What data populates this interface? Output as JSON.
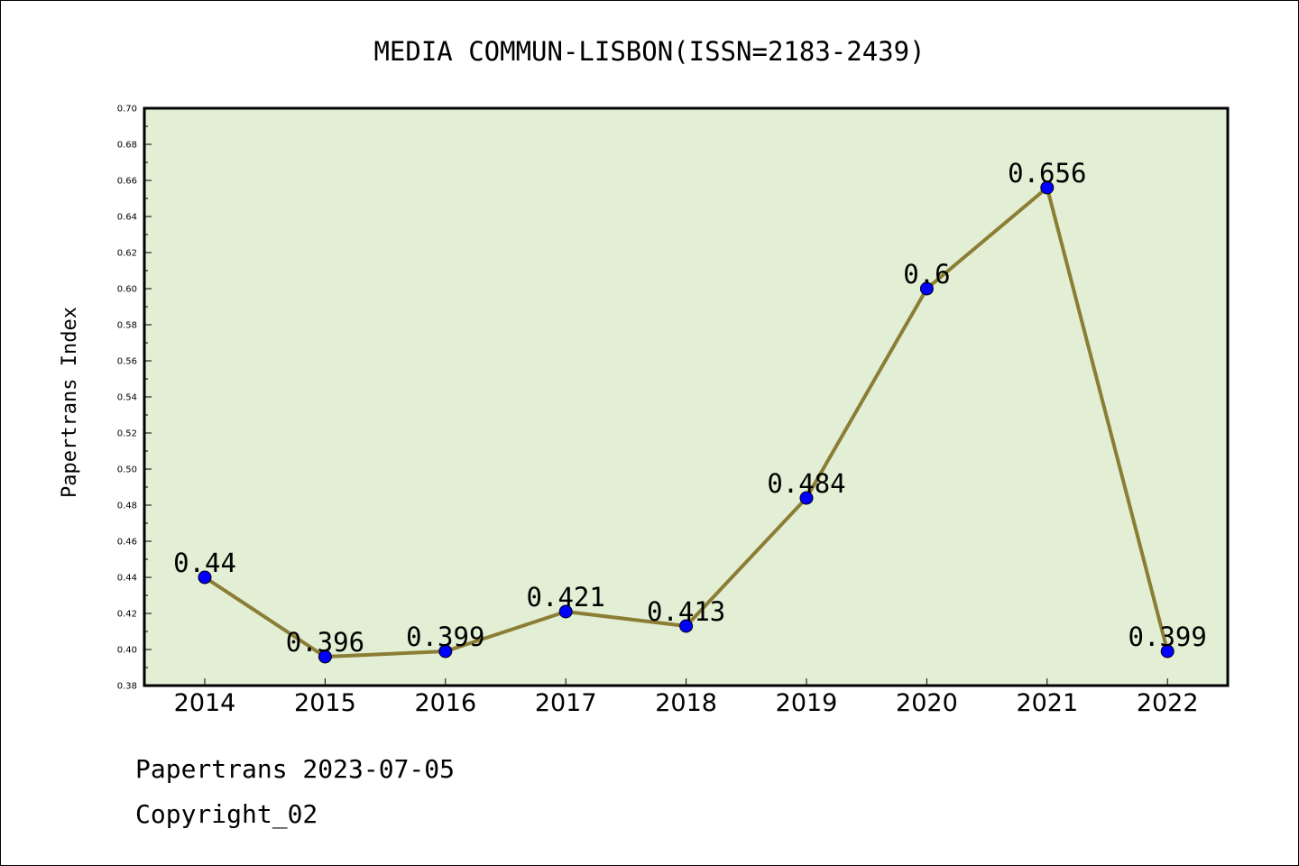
{
  "chart_data": {
    "type": "line",
    "title": "MEDIA COMMUN-LISBON(ISSN=2183-2439)",
    "xlabel": "",
    "ylabel": "Papertrans Index",
    "categories": [
      "2014",
      "2015",
      "2016",
      "2017",
      "2018",
      "2019",
      "2020",
      "2021",
      "2022"
    ],
    "series": [
      {
        "values": [
          0.44,
          0.396,
          0.399,
          0.421,
          0.413,
          0.484,
          0.6,
          0.656,
          0.399
        ],
        "data_labels": [
          "0.44",
          "0.396",
          "0.399",
          "0.421",
          "0.413",
          "0.484",
          "0.6",
          "0.656",
          "0.399"
        ],
        "line_color": "#8b7d34",
        "marker_color": "#0000ff"
      }
    ],
    "ylim": [
      0.38,
      0.7
    ],
    "yticks": [
      "0.38",
      "0.40",
      "0.42",
      "0.44",
      "0.46",
      "0.48",
      "0.50",
      "0.52",
      "0.54",
      "0.56",
      "0.58",
      "0.60",
      "0.62",
      "0.64",
      "0.66",
      "0.68",
      "0.70"
    ],
    "grid": false,
    "plot_background": "#e2efd5"
  },
  "footer": {
    "line1": "Papertrans 2023-07-05",
    "line2": "Copyright_02"
  }
}
